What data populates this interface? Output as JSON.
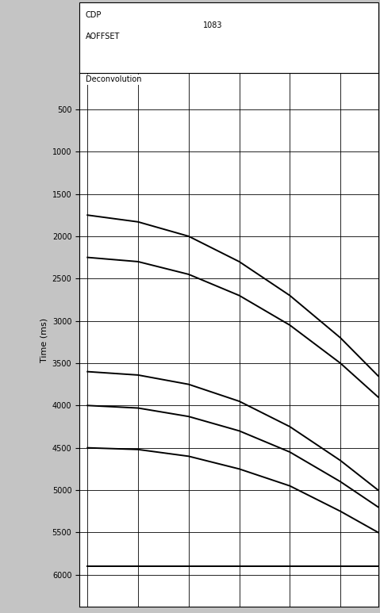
{
  "chart_data": {
    "type": "line",
    "header": {
      "cdp_label": "CDP",
      "cdp_value": "1083",
      "offset_label": "AOFFSET"
    },
    "panel_label": "Deconvolution",
    "y_label": "Time (ms)",
    "x": [
      418,
      3043,
      5668,
      8293,
      10918,
      13543,
      15500
    ],
    "series": [
      {
        "color": "#000000",
        "values": [
          1750,
          1830,
          2000,
          2300,
          2700,
          3200,
          3650
        ]
      },
      {
        "color": "#000000",
        "values": [
          2250,
          2300,
          2450,
          2700,
          3050,
          3500,
          3900
        ]
      },
      {
        "color": "#000000",
        "values": [
          3600,
          3640,
          3750,
          3950,
          4250,
          4650,
          5000
        ]
      },
      {
        "color": "#000000",
        "values": [
          4000,
          4030,
          4130,
          4300,
          4550,
          4900,
          5200
        ]
      },
      {
        "color": "#000000",
        "values": [
          4500,
          4520,
          4600,
          4750,
          4950,
          5250,
          5500
        ]
      },
      {
        "color": "#000000",
        "values": [
          5900,
          5900,
          5900,
          5900,
          5900,
          5900,
          5900
        ]
      }
    ],
    "xlim": [
      0,
      15500
    ],
    "xticks": [
      418,
      3043,
      5668,
      8293,
      10918,
      13543
    ],
    "ylim": [
      6380,
      70
    ],
    "yticks": [
      500,
      1000,
      1500,
      2000,
      2500,
      3000,
      3500,
      4000,
      4500,
      5000,
      5500,
      6000
    ],
    "grid": true
  }
}
